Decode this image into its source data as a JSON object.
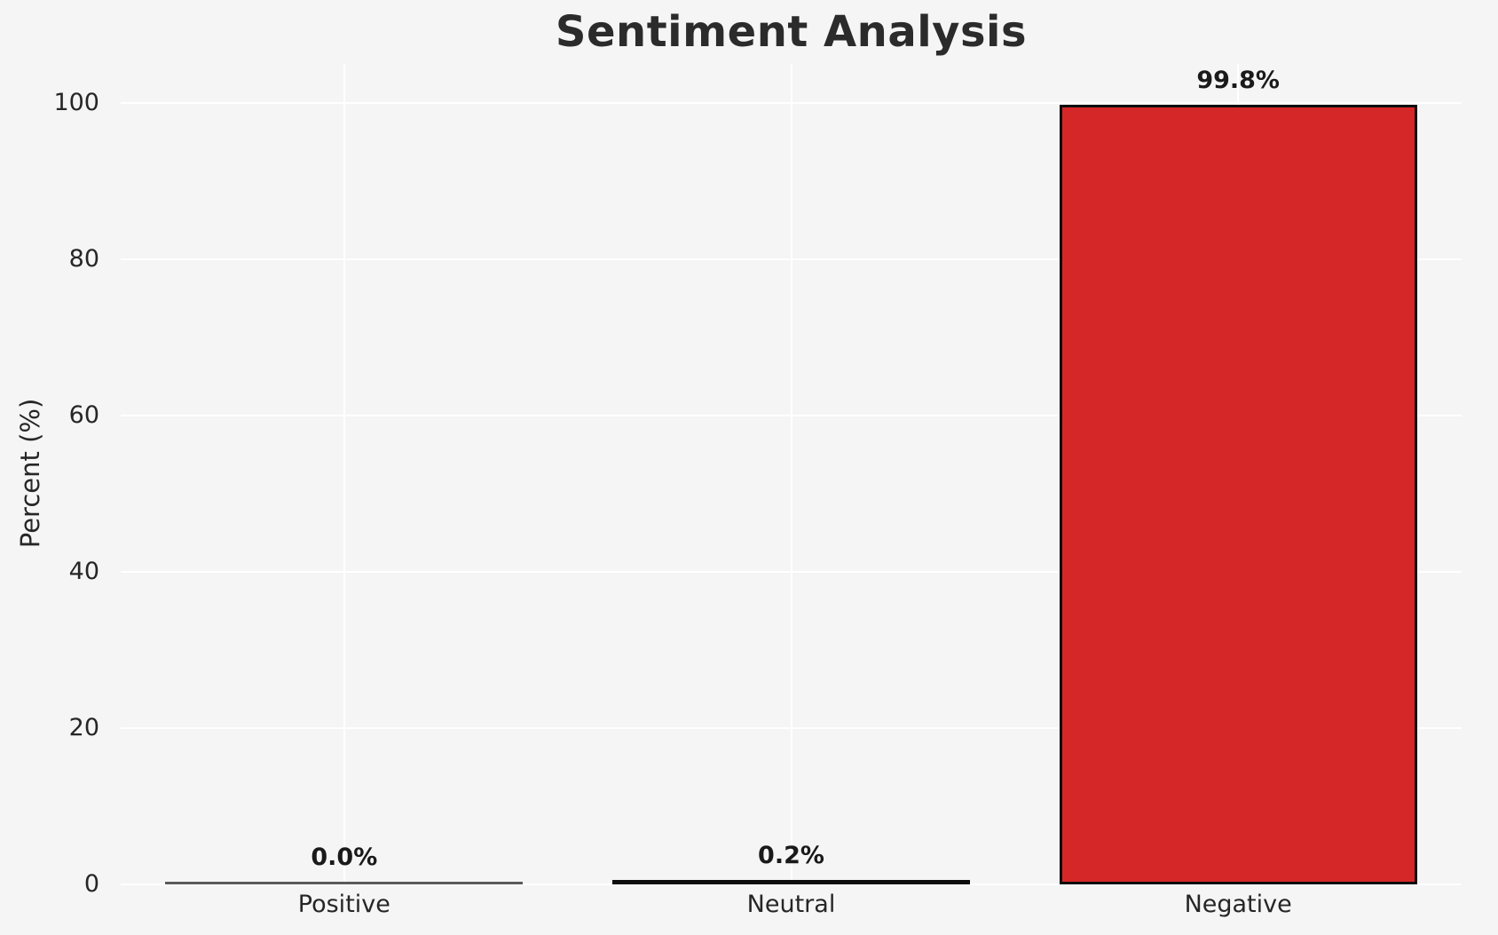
{
  "chart_data": {
    "type": "bar",
    "title": "Sentiment Analysis",
    "xlabel": "",
    "ylabel": "Percent (%)",
    "categories": [
      "Positive",
      "Neutral",
      "Negative"
    ],
    "values": [
      0.0,
      0.2,
      99.8
    ],
    "value_labels": [
      "0.0%",
      "0.2%",
      "99.8%"
    ],
    "yticks": [
      0,
      20,
      40,
      60,
      80,
      100
    ],
    "ylim": [
      0,
      105
    ],
    "grid": "on",
    "legend": "none",
    "bar_fills": [
      null,
      null,
      "#d62728"
    ],
    "colors": {
      "negative_bar_fill": "#d62728",
      "bar_edge": "#0d0d0d",
      "zero_bar_line": "#5a5a5a",
      "background": "#f5f5f6",
      "gridline": "#ffffff",
      "text": "#262626",
      "value_label_text": "#1a1a1a"
    }
  }
}
